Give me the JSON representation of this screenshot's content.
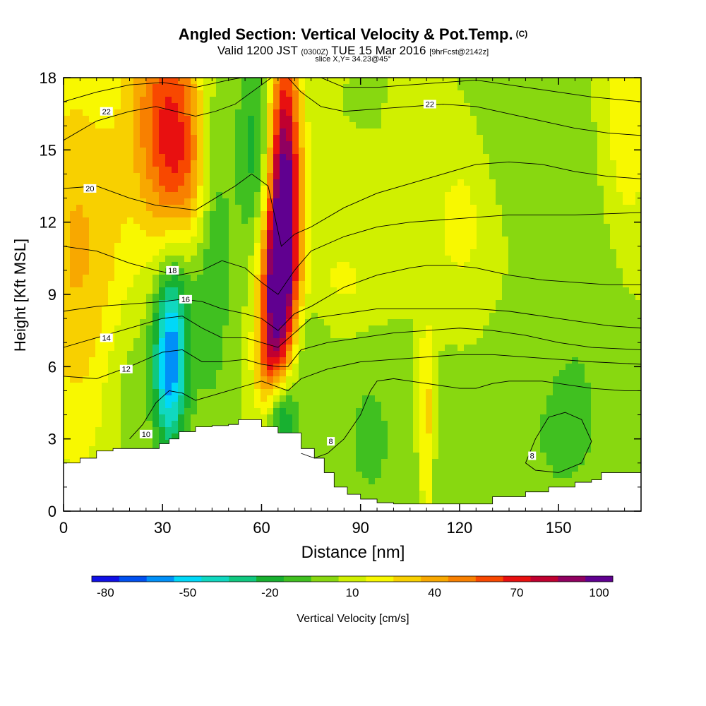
{
  "title": {
    "main": "Angled Section: Vertical Velocity & Pot.Temp.",
    "main_unit": "(C)",
    "valid_prefix": "Valid 1200 JST",
    "valid_zulu": "(0300Z)",
    "valid_date": "TUE 15 Mar 2016",
    "forecast": "[9hrFcst@2142z]",
    "slice": "slice X,Y= 34.23@45°"
  },
  "chart_data": {
    "type": "heatmap",
    "xlabel": "Distance [nm]",
    "ylabel": "Height [Kft MSL]",
    "xlim": [
      0,
      175
    ],
    "ylim": [
      0,
      18
    ],
    "x_ticks": [
      0,
      30,
      60,
      90,
      120,
      150
    ],
    "y_ticks": [
      0,
      3,
      6,
      9,
      12,
      15,
      18
    ],
    "colorbar": {
      "label": "Vertical Velocity [cm/s]",
      "min": -85,
      "max": 115,
      "step": 10,
      "tick_values": [
        -80,
        -50,
        -20,
        10,
        40,
        70,
        100
      ],
      "colors": [
        "#1010e6",
        "#0050f0",
        "#0090f8",
        "#00d8f8",
        "#10d8c0",
        "#10c880",
        "#18b030",
        "#40c020",
        "#88d810",
        "#d0f000",
        "#f8f800",
        "#f8d000",
        "#f8a800",
        "#f88000",
        "#f84800",
        "#e81010",
        "#c00030",
        "#900060",
        "#600090"
      ]
    },
    "terrain": [
      [
        0,
        2.0
      ],
      [
        5,
        2.2
      ],
      [
        10,
        2.5
      ],
      [
        15,
        2.6
      ],
      [
        20,
        2.6
      ],
      [
        25,
        2.6
      ],
      [
        29,
        2.8
      ],
      [
        32,
        3.0
      ],
      [
        35,
        3.3
      ],
      [
        40,
        3.5
      ],
      [
        45,
        3.55
      ],
      [
        50,
        3.6
      ],
      [
        53,
        3.8
      ],
      [
        57,
        3.8
      ],
      [
        60,
        3.5
      ],
      [
        65,
        3.25
      ],
      [
        70,
        3.25
      ],
      [
        72,
        2.6
      ],
      [
        76,
        2.2
      ],
      [
        79,
        1.6
      ],
      [
        82,
        1.0
      ],
      [
        86,
        0.7
      ],
      [
        90,
        0.5
      ],
      [
        95,
        0.35
      ],
      [
        100,
        0.3
      ],
      [
        110,
        0.3
      ],
      [
        125,
        0.3
      ],
      [
        130,
        0.6
      ],
      [
        140,
        0.8
      ],
      [
        147,
        1.0
      ],
      [
        155,
        1.2
      ],
      [
        160,
        1.3
      ],
      [
        163,
        1.6
      ],
      [
        170,
        1.6
      ],
      [
        175,
        1.6
      ]
    ],
    "w_field": {
      "background": 5,
      "features": [
        {
          "x": 3,
          "y": 11,
          "sx": 9,
          "sy": 6,
          "w": 30
        },
        {
          "x": 15,
          "y": 10,
          "sx": 6,
          "sy": 5,
          "w": 8
        },
        {
          "x": 18,
          "y": 5.5,
          "sx": 5,
          "sy": 2.5,
          "w": -10
        },
        {
          "x": 32,
          "y": 6,
          "sx": 3.5,
          "sy": 2.5,
          "w": -60
        },
        {
          "x": 35,
          "y": 9,
          "sx": 4,
          "sy": 3,
          "w": -20
        },
        {
          "x": 45,
          "y": 12,
          "sx": 4,
          "sy": 5,
          "w": -25
        },
        {
          "x": 31,
          "y": 16.5,
          "sx": 8,
          "sy": 3.5,
          "w": 55
        },
        {
          "x": 37,
          "y": 13.5,
          "sx": 6,
          "sy": 2.5,
          "w": 28
        },
        {
          "x": 67,
          "y": 13,
          "sx": 3.5,
          "sy": 4.5,
          "w": 100
        },
        {
          "x": 64,
          "y": 9,
          "sx": 3.5,
          "sy": 2.5,
          "w": 65
        },
        {
          "x": 62,
          "y": 6,
          "sx": 3,
          "sy": 1.5,
          "w": 30
        },
        {
          "x": 58,
          "y": 15,
          "sx": 4,
          "sy": 3,
          "w": -25
        },
        {
          "x": 66,
          "y": 4,
          "sx": 3,
          "sy": 1.3,
          "w": -45
        },
        {
          "x": 72,
          "y": 6.5,
          "sx": 5,
          "sy": 2,
          "w": -15
        },
        {
          "x": 85,
          "y": 9.5,
          "sx": 10,
          "sy": 1.5,
          "w": 12
        },
        {
          "x": 93,
          "y": 3,
          "sx": 8,
          "sy": 3,
          "w": -12
        },
        {
          "x": 110,
          "y": 3.5,
          "sx": 1.7,
          "sy": 3,
          "w": 28
        },
        {
          "x": 115,
          "y": 2,
          "sx": 5,
          "sy": 2,
          "w": -8
        },
        {
          "x": 120,
          "y": 12,
          "sx": 6,
          "sy": 2,
          "w": 15
        },
        {
          "x": 150,
          "y": 3,
          "sx": 12,
          "sy": 3,
          "w": -10
        },
        {
          "x": 157,
          "y": 9,
          "sx": 8,
          "sy": 5,
          "w": -6
        },
        {
          "x": 171,
          "y": 16,
          "sx": 5,
          "sy": 3,
          "w": 20
        },
        {
          "x": 140,
          "y": 15,
          "sx": 10,
          "sy": 2,
          "w": -5
        }
      ]
    },
    "theta_contours": [
      {
        "label": "8",
        "points": [
          [
            72,
            2.4
          ],
          [
            76,
            2.2
          ],
          [
            80,
            2.4
          ],
          [
            85,
            3.0
          ],
          [
            90,
            4.0
          ],
          [
            93,
            5.0
          ],
          [
            95,
            5.4
          ],
          [
            100,
            5.5
          ],
          [
            105,
            5.4
          ],
          [
            110,
            5.3
          ],
          [
            115,
            5.2
          ],
          [
            120,
            5.1
          ],
          [
            125,
            5.1
          ],
          [
            130,
            5.3
          ],
          [
            135,
            5.4
          ],
          [
            140,
            5.4
          ],
          [
            145,
            5.4
          ],
          [
            150,
            5.3
          ],
          [
            160,
            5.1
          ],
          [
            170,
            5.0
          ],
          [
            175,
            5.0
          ]
        ],
        "label_at": [
          81,
          2.9
        ]
      },
      {
        "label": "8",
        "points": [
          [
            140,
            2.0
          ],
          [
            143,
            3.0
          ],
          [
            147,
            3.9
          ],
          [
            152,
            4.1
          ],
          [
            157,
            3.8
          ],
          [
            160,
            2.9
          ],
          [
            157,
            2.0
          ],
          [
            150,
            1.6
          ],
          [
            143,
            1.7
          ],
          [
            140,
            2.0
          ]
        ],
        "label_at": [
          142,
          2.3
        ]
      },
      {
        "label": "10",
        "points": [
          [
            20,
            3.0
          ],
          [
            24,
            3.6
          ],
          [
            28,
            4.5
          ],
          [
            32,
            5.0
          ],
          [
            36,
            4.9
          ],
          [
            40,
            4.6
          ],
          [
            45,
            4.8
          ],
          [
            50,
            5.0
          ],
          [
            55,
            5.2
          ],
          [
            60,
            5.4
          ],
          [
            64,
            5.2
          ],
          [
            68,
            5.0
          ],
          [
            72,
            5.5
          ],
          [
            80,
            5.9
          ],
          [
            90,
            6.2
          ],
          [
            100,
            6.3
          ],
          [
            110,
            6.4
          ],
          [
            120,
            6.5
          ],
          [
            130,
            6.5
          ],
          [
            140,
            6.4
          ],
          [
            150,
            6.3
          ],
          [
            160,
            6.2
          ],
          [
            175,
            6.1
          ]
        ],
        "label_at": [
          25,
          3.2
        ]
      },
      {
        "label": "12",
        "points": [
          [
            0,
            5.6
          ],
          [
            10,
            5.5
          ],
          [
            20,
            6.0
          ],
          [
            25,
            6.3
          ],
          [
            30,
            6.6
          ],
          [
            36,
            6.7
          ],
          [
            42,
            6.2
          ],
          [
            48,
            6.2
          ],
          [
            55,
            6.3
          ],
          [
            60,
            6.1
          ],
          [
            65,
            6.0
          ],
          [
            68,
            6.0
          ],
          [
            72,
            6.7
          ],
          [
            80,
            7.0
          ],
          [
            90,
            7.2
          ],
          [
            100,
            7.4
          ],
          [
            110,
            7.5
          ],
          [
            120,
            7.6
          ],
          [
            130,
            7.5
          ],
          [
            140,
            7.3
          ],
          [
            150,
            7.0
          ],
          [
            160,
            6.8
          ],
          [
            175,
            6.7
          ]
        ],
        "label_at": [
          19,
          5.9
        ]
      },
      {
        "label": "14",
        "points": [
          [
            0,
            6.8
          ],
          [
            10,
            7.2
          ],
          [
            20,
            7.6
          ],
          [
            30,
            8.0
          ],
          [
            36,
            8.1
          ],
          [
            42,
            7.6
          ],
          [
            48,
            7.2
          ],
          [
            55,
            7.2
          ],
          [
            60,
            7.0
          ],
          [
            65,
            6.8
          ],
          [
            70,
            7.4
          ],
          [
            75,
            8.0
          ],
          [
            85,
            8.2
          ],
          [
            95,
            8.4
          ],
          [
            105,
            8.4
          ],
          [
            115,
            8.4
          ],
          [
            125,
            8.4
          ],
          [
            135,
            8.3
          ],
          [
            145,
            8.1
          ],
          [
            155,
            7.9
          ],
          [
            165,
            7.7
          ],
          [
            175,
            7.6
          ]
        ],
        "label_at": [
          13,
          7.2
        ]
      },
      {
        "label": "16",
        "points": [
          [
            0,
            8.3
          ],
          [
            10,
            8.5
          ],
          [
            20,
            8.6
          ],
          [
            30,
            8.7
          ],
          [
            36,
            8.8
          ],
          [
            42,
            8.7
          ],
          [
            48,
            8.4
          ],
          [
            55,
            8.2
          ],
          [
            60,
            8.0
          ],
          [
            65,
            7.5
          ],
          [
            70,
            8.2
          ],
          [
            75,
            8.5
          ],
          [
            85,
            9.3
          ],
          [
            95,
            9.8
          ],
          [
            105,
            10.1
          ],
          [
            110,
            10.2
          ],
          [
            118,
            10.2
          ],
          [
            125,
            10.1
          ],
          [
            135,
            9.8
          ],
          [
            145,
            9.6
          ],
          [
            155,
            9.5
          ],
          [
            165,
            9.4
          ],
          [
            175,
            9.4
          ]
        ],
        "label_at": [
          37,
          8.8
        ]
      },
      {
        "label": "18",
        "points": [
          [
            0,
            11.0
          ],
          [
            10,
            10.8
          ],
          [
            20,
            10.3
          ],
          [
            28,
            10.0
          ],
          [
            35,
            9.8
          ],
          [
            42,
            10.0
          ],
          [
            48,
            10.4
          ],
          [
            55,
            10.1
          ],
          [
            60,
            9.5
          ],
          [
            65,
            9.0
          ],
          [
            70,
            10.0
          ],
          [
            75,
            10.8
          ],
          [
            85,
            11.4
          ],
          [
            95,
            11.8
          ],
          [
            105,
            12.0
          ],
          [
            115,
            12.1
          ],
          [
            125,
            12.2
          ],
          [
            135,
            12.3
          ],
          [
            145,
            12.3
          ],
          [
            155,
            12.3
          ],
          [
            175,
            12.4
          ]
        ],
        "label_at": [
          33,
          10.0
        ]
      },
      {
        "label": "20",
        "points": [
          [
            0,
            13.4
          ],
          [
            10,
            13.5
          ],
          [
            20,
            13.0
          ],
          [
            28,
            12.7
          ],
          [
            34,
            12.6
          ],
          [
            40,
            12.5
          ],
          [
            46,
            13.0
          ],
          [
            52,
            13.5
          ],
          [
            57,
            14.0
          ],
          [
            62,
            13.5
          ],
          [
            66,
            11.0
          ],
          [
            70,
            11.5
          ],
          [
            75,
            11.8
          ],
          [
            85,
            12.6
          ],
          [
            95,
            13.2
          ],
          [
            105,
            13.6
          ],
          [
            115,
            14.0
          ],
          [
            125,
            14.4
          ],
          [
            135,
            14.5
          ],
          [
            145,
            14.4
          ],
          [
            155,
            14.1
          ],
          [
            165,
            13.9
          ],
          [
            175,
            13.8
          ]
        ],
        "label_at": [
          8,
          13.4
        ]
      },
      {
        "label": "22",
        "points": [
          [
            0,
            15.4
          ],
          [
            10,
            16.2
          ],
          [
            20,
            16.6
          ],
          [
            28,
            16.8
          ],
          [
            34,
            16.6
          ],
          [
            40,
            16.4
          ],
          [
            46,
            16.6
          ],
          [
            52,
            16.9
          ],
          [
            58,
            17.5
          ],
          [
            63,
            18.0
          ]
        ],
        "label_at": [
          13,
          16.6
        ]
      },
      {
        "label": "22",
        "points": [
          [
            68,
            18.0
          ],
          [
            72,
            17.4
          ],
          [
            78,
            16.8
          ],
          [
            85,
            16.6
          ],
          [
            95,
            16.7
          ],
          [
            105,
            16.8
          ],
          [
            115,
            16.9
          ],
          [
            125,
            16.8
          ],
          [
            135,
            16.5
          ],
          [
            145,
            16.2
          ],
          [
            155,
            15.9
          ],
          [
            165,
            15.7
          ],
          [
            175,
            15.6
          ]
        ],
        "label_at": [
          111,
          16.9
        ]
      },
      {
        "label": "",
        "points": [
          [
            0,
            17.0
          ],
          [
            10,
            17.4
          ],
          [
            20,
            17.7
          ],
          [
            30,
            17.8
          ],
          [
            40,
            17.6
          ],
          [
            50,
            17.9
          ],
          [
            54,
            18.0
          ]
        ],
        "label_at": null
      },
      {
        "label": "",
        "points": [
          [
            78,
            18.0
          ],
          [
            85,
            17.6
          ],
          [
            95,
            17.6
          ],
          [
            105,
            17.7
          ],
          [
            115,
            17.8
          ],
          [
            125,
            17.9
          ],
          [
            135,
            17.7
          ],
          [
            145,
            17.5
          ],
          [
            160,
            17.2
          ],
          [
            175,
            17.0
          ]
        ],
        "label_at": null
      }
    ]
  }
}
